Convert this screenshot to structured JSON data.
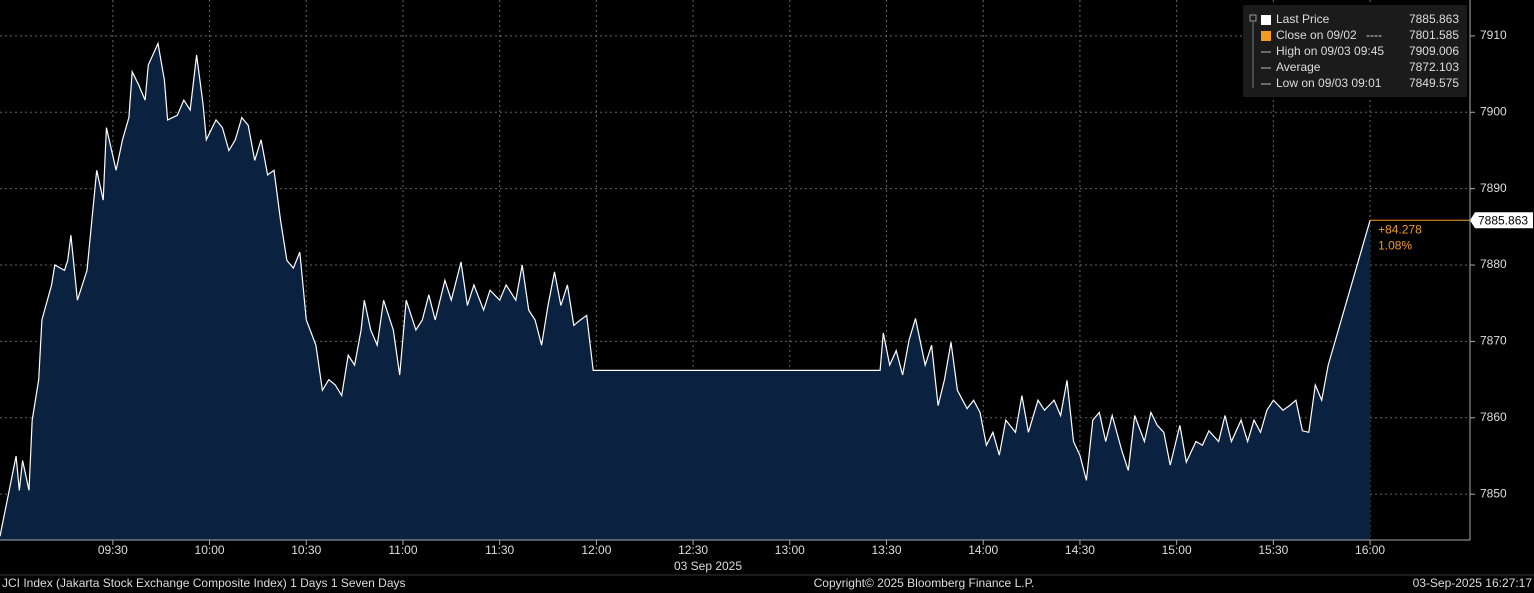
{
  "chart_data": {
    "type": "area",
    "title": "JCI Index (Jakarta Stock Exchange Composite Index) 1 Days 1 Seven Days",
    "x_sublabel": "03 Sep 2025",
    "copyright": "Copyright© 2025 Bloomberg Finance L.P.",
    "timestamp": "03-Sep-2025 16:27:17",
    "xlim": [
      "08:55",
      "16:31"
    ],
    "xticks": [
      "09:30",
      "10:00",
      "10:30",
      "11:00",
      "11:30",
      "12:00",
      "12:30",
      "13:00",
      "13:30",
      "14:00",
      "14:30",
      "15:00",
      "15:30",
      "16:00"
    ],
    "ylim": [
      7844,
      7914.7
    ],
    "yticks": [
      7850,
      7860,
      7870,
      7880,
      7890,
      7900,
      7910
    ],
    "grid": true,
    "series": [
      {
        "name": "Last Price",
        "color": "#ffffff",
        "fill": "#0b2140",
        "x": [
          "08:55",
          "09:00",
          "09:01",
          "09:02",
          "09:04",
          "09:05",
          "09:07",
          "09:08",
          "09:11",
          "09:12",
          "09:15",
          "09:16",
          "09:17",
          "09:19",
          "09:22",
          "09:25",
          "09:27",
          "09:28",
          "09:31",
          "09:33",
          "09:35",
          "09:36",
          "09:38",
          "09:40",
          "09:41",
          "09:44",
          "09:46",
          "09:47",
          "09:50",
          "09:52",
          "09:54",
          "09:56",
          "09:58",
          "09:59",
          "10:02",
          "10:04",
          "10:06",
          "10:08",
          "10:10",
          "10:12",
          "10:14",
          "10:16",
          "10:18",
          "10:20",
          "10:22",
          "10:24",
          "10:26",
          "10:28",
          "10:30",
          "10:33",
          "10:35",
          "10:37",
          "10:39",
          "10:41",
          "10:43",
          "10:45",
          "10:47",
          "10:48",
          "10:50",
          "10:52",
          "10:54",
          "10:57",
          "10:59",
          "11:01",
          "11:04",
          "11:06",
          "11:08",
          "11:10",
          "11:13",
          "11:15",
          "11:18",
          "11:20",
          "11:22",
          "11:25",
          "11:27",
          "11:30",
          "11:32",
          "11:35",
          "11:37",
          "11:39",
          "11:41",
          "11:43",
          "11:45",
          "11:47",
          "11:49",
          "11:51",
          "11:53",
          "11:55",
          "11:57",
          "11:59",
          "13:28",
          "13:29",
          "13:31",
          "13:33",
          "13:35",
          "13:37",
          "13:39",
          "13:42",
          "13:44",
          "13:46",
          "13:48",
          "13:50",
          "13:52",
          "13:55",
          "13:57",
          "13:59",
          "14:01",
          "14:03",
          "14:05",
          "14:07",
          "14:10",
          "14:12",
          "14:14",
          "14:17",
          "14:19",
          "14:22",
          "14:24",
          "14:26",
          "14:28",
          "14:30",
          "14:32",
          "14:34",
          "14:36",
          "14:38",
          "14:40",
          "14:43",
          "14:45",
          "14:47",
          "14:50",
          "14:52",
          "14:54",
          "14:56",
          "14:58",
          "15:01",
          "15:03",
          "15:06",
          "15:08",
          "15:10",
          "15:13",
          "15:15",
          "15:17",
          "15:20",
          "15:22",
          "15:24",
          "15:26",
          "15:28",
          "15:30",
          "15:33",
          "15:35",
          "15:37",
          "15:39",
          "15:41",
          "15:43",
          "15:45",
          "15:47",
          "16:00"
        ],
        "values": [
          7844.5,
          7855,
          7850.5,
          7854.4,
          7850.5,
          7859.7,
          7865,
          7872.8,
          7877.4,
          7880,
          7879.3,
          7880.6,
          7883.9,
          7875.4,
          7879.3,
          7892.4,
          7888.5,
          7898,
          7892.4,
          7896.4,
          7899.3,
          7905.3,
          7903.6,
          7901.6,
          7906.2,
          7909,
          7904.2,
          7899,
          7899.6,
          7901.6,
          7900.3,
          7907.5,
          7901,
          7896.4,
          7899,
          7898,
          7895,
          7896.4,
          7899.3,
          7898.3,
          7893.7,
          7896.4,
          7891.8,
          7892.4,
          7885.9,
          7880.6,
          7879.6,
          7881.7,
          7872.8,
          7869.5,
          7863.6,
          7865,
          7864.3,
          7862.9,
          7868.2,
          7866.9,
          7871.5,
          7875.4,
          7871.5,
          7869.5,
          7875.4,
          7871.5,
          7865.6,
          7875.4,
          7871.5,
          7872.8,
          7876.1,
          7872.8,
          7878,
          7875.4,
          7880.4,
          7874.7,
          7877.4,
          7874.1,
          7876.7,
          7875.4,
          7877.4,
          7875.4,
          7880,
          7874.1,
          7872.8,
          7869.5,
          7874.7,
          7879.1,
          7874.7,
          7877.4,
          7872.1,
          7872.8,
          7873.4,
          7866.2,
          7866.2,
          7871.1,
          7866.9,
          7868.8,
          7865.6,
          7870.2,
          7873,
          7866.9,
          7869.5,
          7861.6,
          7865,
          7869.9,
          7863.6,
          7861.2,
          7862.3,
          7860.7,
          7856.4,
          7858.1,
          7855.1,
          7859.7,
          7858.1,
          7862.9,
          7858.1,
          7862.3,
          7861,
          7862.3,
          7860.3,
          7864.9,
          7856.9,
          7855.1,
          7851.8,
          7859.7,
          7860.7,
          7856.9,
          7860.3,
          7855.7,
          7853.1,
          7860.3,
          7856.9,
          7860.7,
          7859,
          7858.1,
          7853.8,
          7859,
          7854.2,
          7856.9,
          7856.4,
          7858.3,
          7856.9,
          7860.3,
          7856.9,
          7859.7,
          7856.9,
          7859.7,
          7858.1,
          7861,
          7862.3,
          7861,
          7861.6,
          7862.3,
          7858.3,
          7858.1,
          7864.3,
          7862.3,
          7866.9,
          7885.863
        ]
      }
    ],
    "legend": [
      {
        "name": "Last Price",
        "color": "#ffffff"
      },
      {
        "name": "Close on 09/02",
        "value": 7801.585,
        "color": "#f39c1f"
      },
      {
        "name": "High on 09/03 09:45",
        "value": 7909.006,
        "color": "#bbbbbb"
      },
      {
        "name": "Average",
        "value": 7872.103,
        "color": "#bbbbbb"
      },
      {
        "name": "Low on 09/03 09:01",
        "value": 7849.575,
        "color": "#bbbbbb"
      }
    ],
    "change": {
      "value": 84.278,
      "label": "+84.278"
    },
    "change_pct": {
      "value": 1.08,
      "label": "1.08%"
    },
    "change_color": "#f39c1f"
  }
}
